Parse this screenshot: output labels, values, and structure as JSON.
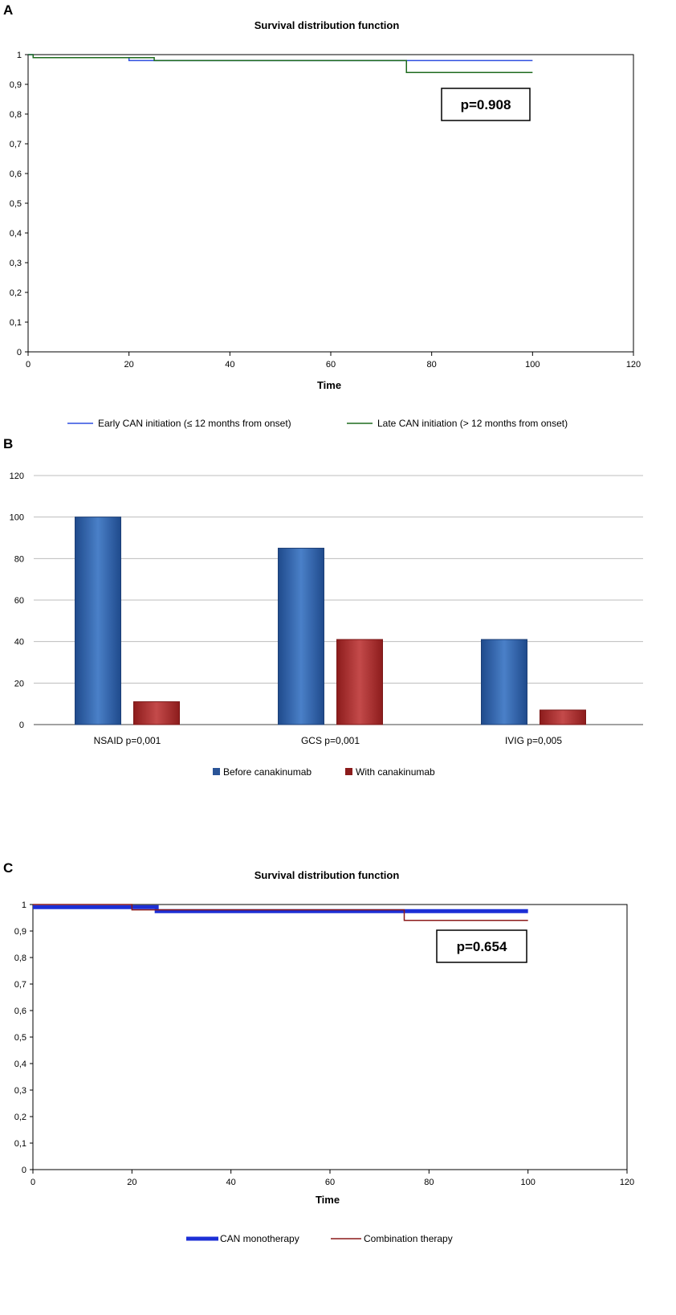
{
  "chart_data": [
    {
      "panel": "A",
      "type": "line",
      "title": "Survival distribution  function",
      "xlabel": "Time",
      "ylabel": "",
      "xlim": [
        0,
        120
      ],
      "ylim": [
        0,
        1
      ],
      "x_ticks": [
        "0",
        "20",
        "40",
        "60",
        "80",
        "100",
        "120"
      ],
      "y_ticks": [
        "0",
        "0,1",
        "0,2",
        "0,3",
        "0,4",
        "0,5",
        "0,6",
        "0,7",
        "0,8",
        "0,9",
        "1"
      ],
      "annotation": "p=0.908",
      "series": [
        {
          "name": "Early CAN initiation (≤ 12 months from onset)",
          "color": "#2f4fe0",
          "steps": [
            [
              0,
              1
            ],
            [
              1,
              0.99
            ],
            [
              20,
              0.98
            ],
            [
              100,
              0.98
            ]
          ]
        },
        {
          "name": "Late CAN initiation (> 12 months from onset)",
          "color": "#1e6b1e",
          "steps": [
            [
              0,
              1
            ],
            [
              1,
              0.99
            ],
            [
              25,
              0.98
            ],
            [
              75,
              0.94
            ],
            [
              100,
              0.94
            ]
          ]
        }
      ]
    },
    {
      "panel": "B",
      "type": "bar",
      "title": "",
      "categories": [
        "NSAID p=0,001",
        "GCS p=0,001",
        "IVIG p=0,005"
      ],
      "ylim": [
        0,
        120
      ],
      "y_ticks": [
        "0",
        "20",
        "40",
        "60",
        "80",
        "100",
        "120"
      ],
      "series": [
        {
          "name": "Before canakinumab",
          "color": "#3a6fb8",
          "values": [
            100,
            85,
            41
          ]
        },
        {
          "name": "With canakinumab",
          "color": "#b02828",
          "values": [
            11,
            41,
            7
          ]
        }
      ]
    },
    {
      "panel": "C",
      "type": "line",
      "title": "Survival distribution  function",
      "xlabel": "Time",
      "ylabel": "",
      "xlim": [
        0,
        120
      ],
      "ylim": [
        0,
        1
      ],
      "x_ticks": [
        "0",
        "20",
        "40",
        "60",
        "80",
        "100",
        "120"
      ],
      "y_ticks": [
        "0",
        "0,1",
        "0,2",
        "0,3",
        "0,4",
        "0,5",
        "0,6",
        "0,7",
        "0,8",
        "0,9",
        "1"
      ],
      "annotation": "p=0.654",
      "series": [
        {
          "name": "CAN monotherapy",
          "color": "#1c2fd6",
          "steps": [
            [
              0,
              0.99
            ],
            [
              25,
              0.975
            ],
            [
              75,
              0.975
            ],
            [
              100,
              0.975
            ]
          ]
        },
        {
          "name": "Combination therapy",
          "color": "#8b1a1a",
          "steps": [
            [
              0,
              1
            ],
            [
              20,
              0.98
            ],
            [
              75,
              0.94
            ],
            [
              100,
              0.94
            ]
          ]
        }
      ]
    }
  ]
}
